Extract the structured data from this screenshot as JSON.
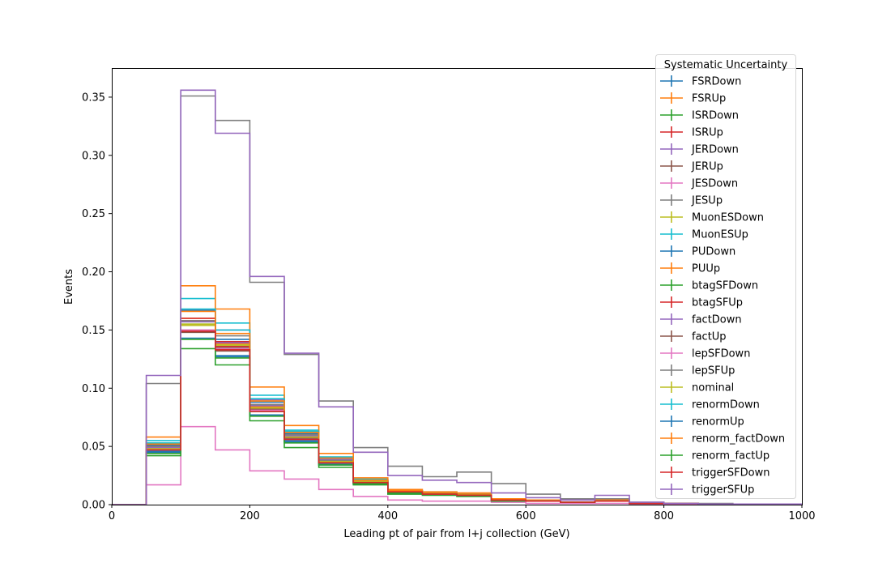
{
  "chart_data": {
    "type": "line",
    "style": "step histogram",
    "title": "",
    "xlabel": "Leading pt of pair from l+j collection (GeV)",
    "ylabel": "Events",
    "xlim": [
      0,
      1000
    ],
    "ylim": [
      0,
      0.375
    ],
    "xticks": [
      0,
      200,
      400,
      600,
      800,
      1000
    ],
    "xtick_labels": [
      "0",
      "200",
      "400",
      "600",
      "800",
      "1000"
    ],
    "yticks": [
      0.0,
      0.05,
      0.1,
      0.15,
      0.2,
      0.25,
      0.3,
      0.35
    ],
    "ytick_labels": [
      "0.00",
      "0.05",
      "0.10",
      "0.15",
      "0.20",
      "0.25",
      "0.30",
      "0.35"
    ],
    "grid": false,
    "legend_title": "Systematic Uncertainty",
    "legend_position": "top-right",
    "bin_edges": [
      0,
      50,
      100,
      150,
      200,
      250,
      300,
      350,
      400,
      450,
      500,
      550,
      600,
      650,
      700,
      750,
      800,
      850,
      900,
      950,
      1000
    ],
    "series": [
      {
        "name": "FSRDown",
        "color": "#1f77b4",
        "values": [
          0,
          0.046,
          0.149,
          0.128,
          0.077,
          0.055,
          0.035,
          0.018,
          0.01,
          0.009,
          0.008,
          0.004,
          0.003,
          0.002,
          0.003,
          0.001,
          0.001,
          0.0005,
          0.0005,
          0.0003
        ]
      },
      {
        "name": "FSRUp",
        "color": "#ff7f0e",
        "values": [
          0,
          0.052,
          0.16,
          0.138,
          0.084,
          0.06,
          0.038,
          0.021,
          0.012,
          0.01,
          0.009,
          0.004,
          0.003,
          0.002,
          0.003,
          0.001,
          0.001,
          0.0005,
          0.0005,
          0.0003
        ]
      },
      {
        "name": "ISRDown",
        "color": "#2ca02c",
        "values": [
          0,
          0.048,
          0.155,
          0.134,
          0.08,
          0.057,
          0.036,
          0.019,
          0.011,
          0.009,
          0.008,
          0.004,
          0.003,
          0.002,
          0.003,
          0.001,
          0.001,
          0.0005,
          0.0005,
          0.0003
        ]
      },
      {
        "name": "ISRUp",
        "color": "#d62728",
        "values": [
          0,
          0.049,
          0.158,
          0.136,
          0.082,
          0.058,
          0.037,
          0.02,
          0.011,
          0.01,
          0.009,
          0.004,
          0.003,
          0.002,
          0.003,
          0.001,
          0.001,
          0.0005,
          0.0005,
          0.0003
        ]
      },
      {
        "name": "JERDown",
        "color": "#9467bd",
        "values": [
          0,
          0.05,
          0.167,
          0.15,
          0.09,
          0.061,
          0.039,
          0.02,
          0.012,
          0.01,
          0.009,
          0.004,
          0.003,
          0.002,
          0.003,
          0.001,
          0.001,
          0.0005,
          0.0005,
          0.0003
        ]
      },
      {
        "name": "JERUp",
        "color": "#8c564b",
        "values": [
          0,
          0.047,
          0.15,
          0.135,
          0.082,
          0.057,
          0.036,
          0.019,
          0.011,
          0.009,
          0.008,
          0.004,
          0.003,
          0.002,
          0.003,
          0.001,
          0.001,
          0.0005,
          0.0005,
          0.0003
        ]
      },
      {
        "name": "JESDown",
        "color": "#e377c2",
        "values": [
          0,
          0.017,
          0.067,
          0.047,
          0.029,
          0.022,
          0.013,
          0.007,
          0.004,
          0.003,
          0.003,
          0.002,
          0.001,
          0.001,
          0.001,
          0.0005,
          0.0005,
          0.0003,
          0.0003,
          0.0002
        ]
      },
      {
        "name": "JESUp",
        "color": "#7f7f7f",
        "values": [
          0,
          0.104,
          0.351,
          0.33,
          0.191,
          0.129,
          0.089,
          0.049,
          0.033,
          0.024,
          0.028,
          0.018,
          0.009,
          0.005,
          0.005,
          0.002,
          0.001,
          0.001,
          0.0005,
          0.0005
        ]
      },
      {
        "name": "MuonESDown",
        "color": "#bcbd22",
        "values": [
          0,
          0.049,
          0.155,
          0.137,
          0.083,
          0.058,
          0.037,
          0.02,
          0.011,
          0.01,
          0.009,
          0.004,
          0.003,
          0.002,
          0.003,
          0.001,
          0.001,
          0.0005,
          0.0005,
          0.0003
        ]
      },
      {
        "name": "MuonESUp",
        "color": "#17becf",
        "values": [
          0,
          0.055,
          0.177,
          0.156,
          0.094,
          0.064,
          0.041,
          0.022,
          0.012,
          0.01,
          0.009,
          0.004,
          0.003,
          0.002,
          0.003,
          0.001,
          0.001,
          0.0005,
          0.0005,
          0.0003
        ]
      },
      {
        "name": "PUDown",
        "color": "#1f77b4",
        "values": [
          0,
          0.051,
          0.167,
          0.142,
          0.088,
          0.061,
          0.04,
          0.021,
          0.012,
          0.01,
          0.009,
          0.004,
          0.003,
          0.002,
          0.003,
          0.001,
          0.001,
          0.0005,
          0.0005,
          0.0003
        ]
      },
      {
        "name": "PUUp",
        "color": "#ff7f0e",
        "values": [
          0,
          0.058,
          0.188,
          0.168,
          0.101,
          0.068,
          0.044,
          0.023,
          0.013,
          0.011,
          0.01,
          0.005,
          0.004,
          0.002,
          0.004,
          0.001,
          0.001,
          0.0005,
          0.0005,
          0.0003
        ]
      },
      {
        "name": "btagSFDown",
        "color": "#2ca02c",
        "values": [
          0,
          0.042,
          0.134,
          0.12,
          0.072,
          0.049,
          0.032,
          0.017,
          0.009,
          0.008,
          0.007,
          0.003,
          0.003,
          0.002,
          0.003,
          0.001,
          0.001,
          0.0005,
          0.0005,
          0.0003
        ]
      },
      {
        "name": "btagSFUp",
        "color": "#d62728",
        "values": [
          0,
          0.05,
          0.16,
          0.14,
          0.086,
          0.059,
          0.038,
          0.02,
          0.011,
          0.01,
          0.009,
          0.004,
          0.003,
          0.002,
          0.003,
          0.001,
          0.001,
          0.0005,
          0.0005,
          0.0003
        ]
      },
      {
        "name": "factDown",
        "color": "#9467bd",
        "values": [
          0,
          0.049,
          0.157,
          0.139,
          0.085,
          0.059,
          0.038,
          0.02,
          0.011,
          0.01,
          0.009,
          0.004,
          0.003,
          0.002,
          0.003,
          0.001,
          0.001,
          0.0005,
          0.0005,
          0.0003
        ]
      },
      {
        "name": "factUp",
        "color": "#8c564b",
        "values": [
          0,
          0.047,
          0.148,
          0.132,
          0.08,
          0.056,
          0.036,
          0.019,
          0.011,
          0.009,
          0.008,
          0.004,
          0.003,
          0.002,
          0.003,
          0.001,
          0.001,
          0.0005,
          0.0005,
          0.0003
        ]
      },
      {
        "name": "lepSFDown",
        "color": "#e377c2",
        "values": [
          0,
          0.047,
          0.15,
          0.134,
          0.081,
          0.056,
          0.036,
          0.019,
          0.011,
          0.009,
          0.008,
          0.004,
          0.003,
          0.002,
          0.003,
          0.001,
          0.001,
          0.0005,
          0.0005,
          0.0003
        ]
      },
      {
        "name": "lepSFUp",
        "color": "#7f7f7f",
        "values": [
          0,
          0.05,
          0.158,
          0.145,
          0.086,
          0.06,
          0.038,
          0.02,
          0.011,
          0.01,
          0.009,
          0.004,
          0.003,
          0.002,
          0.003,
          0.001,
          0.001,
          0.0005,
          0.0005,
          0.0003
        ]
      },
      {
        "name": "nominal",
        "color": "#bcbd22",
        "values": [
          0,
          0.048,
          0.154,
          0.137,
          0.083,
          0.058,
          0.037,
          0.02,
          0.011,
          0.01,
          0.009,
          0.004,
          0.003,
          0.002,
          0.003,
          0.001,
          0.001,
          0.0005,
          0.0005,
          0.0003
        ]
      },
      {
        "name": "renormDown",
        "color": "#17becf",
        "values": [
          0,
          0.053,
          0.168,
          0.15,
          0.091,
          0.063,
          0.04,
          0.021,
          0.012,
          0.01,
          0.009,
          0.004,
          0.003,
          0.002,
          0.003,
          0.001,
          0.001,
          0.0005,
          0.0005,
          0.0003
        ]
      },
      {
        "name": "renormUp",
        "color": "#1f77b4",
        "values": [
          0,
          0.045,
          0.143,
          0.127,
          0.077,
          0.054,
          0.034,
          0.018,
          0.01,
          0.009,
          0.008,
          0.004,
          0.003,
          0.002,
          0.003,
          0.001,
          0.001,
          0.0005,
          0.0005,
          0.0003
        ]
      },
      {
        "name": "renorm_factDown",
        "color": "#ff7f0e",
        "values": [
          0,
          0.052,
          0.166,
          0.147,
          0.089,
          0.062,
          0.04,
          0.021,
          0.012,
          0.01,
          0.009,
          0.004,
          0.003,
          0.002,
          0.003,
          0.001,
          0.001,
          0.0005,
          0.0005,
          0.0003
        ]
      },
      {
        "name": "renorm_factUp",
        "color": "#2ca02c",
        "values": [
          0,
          0.044,
          0.142,
          0.126,
          0.076,
          0.053,
          0.034,
          0.018,
          0.01,
          0.009,
          0.008,
          0.004,
          0.003,
          0.002,
          0.003,
          0.001,
          0.001,
          0.0005,
          0.0005,
          0.0003
        ]
      },
      {
        "name": "triggerSFDown",
        "color": "#d62728",
        "values": [
          0,
          0.047,
          0.149,
          0.133,
          0.08,
          0.056,
          0.036,
          0.019,
          0.011,
          0.009,
          0.008,
          0.004,
          0.003,
          0.002,
          0.003,
          0.001,
          0.001,
          0.0005,
          0.0005,
          0.0003
        ]
      },
      {
        "name": "triggerSFUp",
        "color": "#9467bd",
        "values": [
          0,
          0.111,
          0.356,
          0.319,
          0.196,
          0.13,
          0.084,
          0.045,
          0.025,
          0.021,
          0.019,
          0.01,
          0.006,
          0.004,
          0.008,
          0.002,
          0.001,
          0.0005,
          0.0005,
          0.0005
        ]
      }
    ]
  }
}
